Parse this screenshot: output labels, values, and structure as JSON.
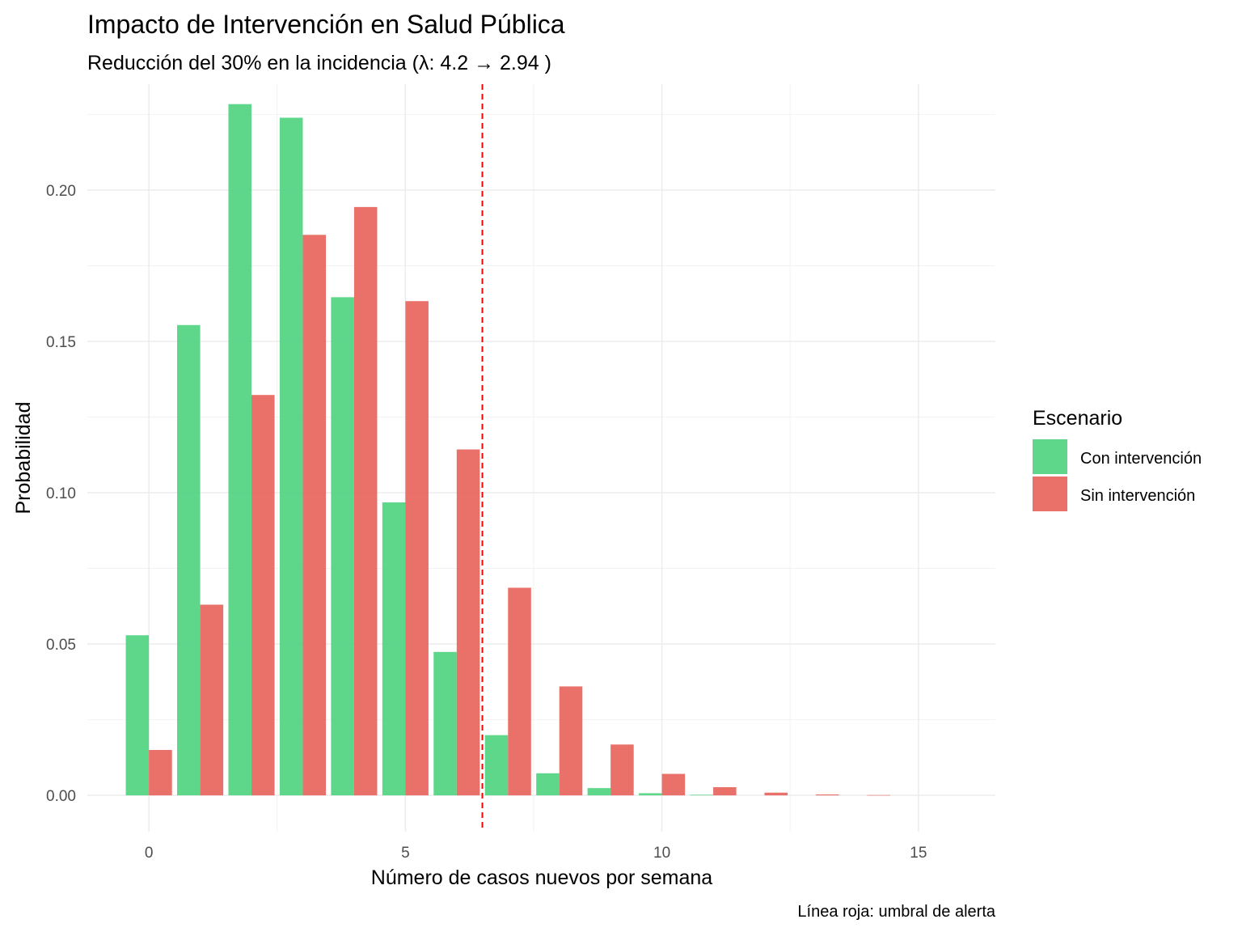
{
  "chart_data": {
    "type": "bar",
    "title": "Impacto de Intervención en Salud Pública",
    "subtitle": "Reducción del 30% en la incidencia (λ: 4.2 → 2.94 )",
    "xlabel": "Número de casos nuevos por semana",
    "ylabel": "Probabilidad",
    "caption": "Línea roja: umbral de alerta",
    "x": [
      0,
      1,
      2,
      3,
      4,
      5,
      6,
      7,
      8,
      9,
      10,
      11,
      12,
      13,
      14,
      15
    ],
    "xlim": [
      -1.2,
      16.5
    ],
    "ylim": [
      -0.012,
      0.235
    ],
    "x_ticks": [
      0,
      5,
      10,
      15
    ],
    "x_tick_labels": [
      "0",
      "5",
      "10",
      "15"
    ],
    "y_ticks": [
      0,
      0.05,
      0.1,
      0.15,
      0.2
    ],
    "y_tick_labels": [
      "0.00",
      "0.05",
      "0.10",
      "0.15",
      "0.20"
    ],
    "grid": true,
    "threshold_x": 6.5,
    "threshold_color": "#ff0000",
    "legend": {
      "title": "Escenario",
      "position": "right"
    },
    "series": [
      {
        "name": "Con intervención",
        "color": "#4dd37e",
        "values": [
          0.0529,
          0.1554,
          0.2284,
          0.2239,
          0.1646,
          0.0968,
          0.0474,
          0.0199,
          0.0073,
          0.0024,
          0.0007,
          0.0002,
          0.0,
          0.0,
          0.0,
          0.0
        ]
      },
      {
        "name": "Sin intervención",
        "color": "#e8625a",
        "values": [
          0.015,
          0.063,
          0.1323,
          0.1852,
          0.1944,
          0.1633,
          0.1143,
          0.0686,
          0.036,
          0.0168,
          0.0071,
          0.0027,
          0.0009,
          0.0003,
          0.0001,
          0.0
        ]
      }
    ]
  }
}
